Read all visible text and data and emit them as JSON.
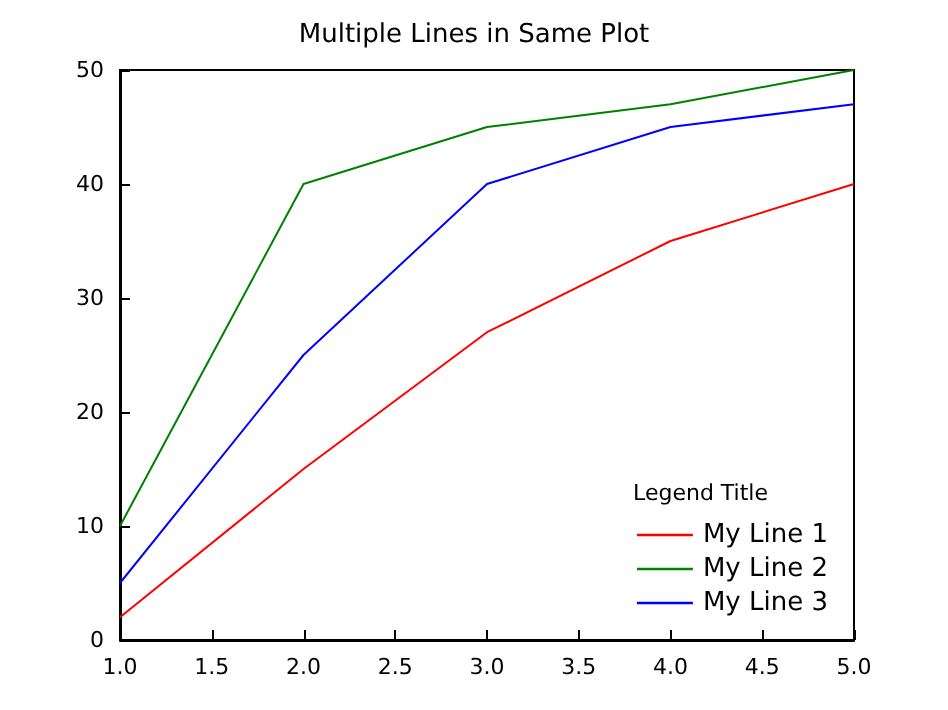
{
  "chart_data": {
    "type": "line",
    "title": "Multiple Lines in Same Plot",
    "legend_title": "Legend Title",
    "x": [
      1,
      2,
      3,
      4,
      5
    ],
    "series": [
      {
        "name": "My Line 1",
        "color": "#ff0000",
        "values": [
          2,
          15,
          27,
          35,
          40
        ]
      },
      {
        "name": "My Line 2",
        "color": "#008000",
        "values": [
          10,
          40,
          45,
          47,
          50
        ]
      },
      {
        "name": "My Line 3",
        "color": "#0000ff",
        "values": [
          5,
          25,
          40,
          45,
          47
        ]
      }
    ],
    "xlim": [
      1,
      5
    ],
    "xticks": [
      {
        "value": 1,
        "label": "1.0"
      },
      {
        "value": 1.5,
        "label": "1.5"
      },
      {
        "value": 2,
        "label": "2.0"
      },
      {
        "value": 2.5,
        "label": "2.5"
      },
      {
        "value": 3,
        "label": "3.0"
      },
      {
        "value": 3.5,
        "label": "3.5"
      },
      {
        "value": 4,
        "label": "4.0"
      },
      {
        "value": 4.5,
        "label": "4.5"
      },
      {
        "value": 5,
        "label": "5.0"
      }
    ],
    "ylim": [
      0,
      50
    ],
    "yticks": [
      0,
      10,
      20,
      30,
      40,
      50
    ],
    "grid": false,
    "legend": "bottom right",
    "marker": "none",
    "line_style": "solid"
  }
}
